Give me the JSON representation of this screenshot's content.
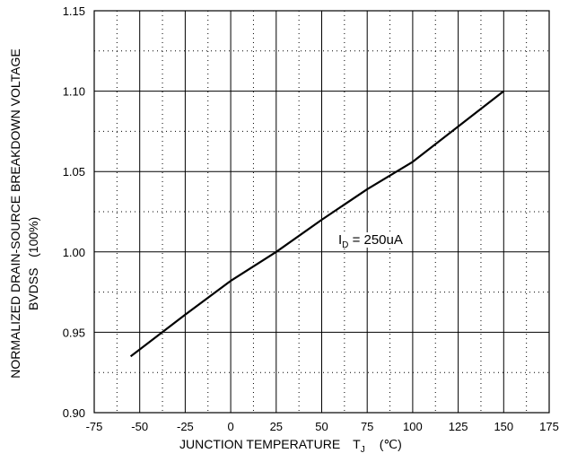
{
  "chart_data": {
    "type": "line",
    "xlabel": {
      "prefix": "JUNCTION TEMPERATURE",
      "symbol": "T",
      "subscript": "J",
      "unit": "(℃)"
    },
    "ylabel": [
      "NORMALIZED DRAIN-SOURCE BREAKDOWN VOLTAGE",
      "BVDSS   (100%)"
    ],
    "xlim": [
      -75,
      175
    ],
    "ylim": [
      0.9,
      1.15
    ],
    "xticks": [
      -75,
      -50,
      -25,
      0,
      25,
      50,
      75,
      100,
      125,
      150,
      175
    ],
    "yticks": [
      "0.90",
      "0.95",
      "1.00",
      "1.05",
      "1.10",
      "1.15"
    ],
    "grid": true,
    "annotation": {
      "prefix": "I",
      "subscript": "D",
      "text": " = 250uA"
    },
    "series": [
      {
        "x": [
          -55,
          -25,
          0,
          25,
          50,
          75,
          100,
          125,
          150
        ],
        "y": [
          0.935,
          0.961,
          0.982,
          1.0,
          1.02,
          1.039,
          1.056,
          1.078,
          1.1
        ]
      }
    ],
    "line_color": "#000000",
    "grid_color": "#000000"
  }
}
